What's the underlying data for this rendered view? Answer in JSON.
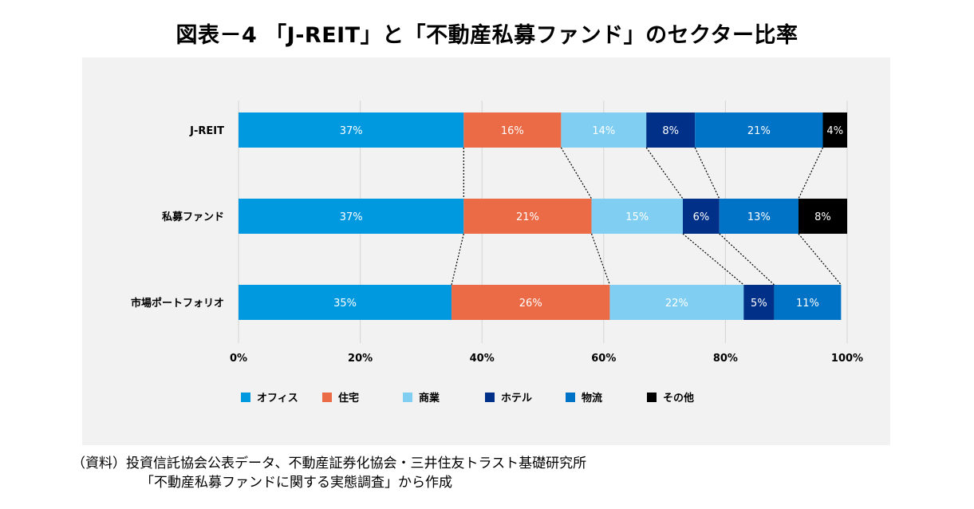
{
  "title": "図表－4 「J-REIT」と「不動産私募ファンド」のセクター比率",
  "source": {
    "line1": "（資料）投資信託協会公表データ、不動産証券化協会・三井住友トラスト基礎研究所",
    "line2": "「不動産私募ファンドに関する実態調査」から作成"
  },
  "chart_data": {
    "type": "bar",
    "orientation": "horizontal",
    "stacked": true,
    "percent_stacked": true,
    "categories": [
      "J-REIT",
      "私募ファンド",
      "市場ポートフォリオ"
    ],
    "series": [
      {
        "name": "オフィス",
        "color": "#0099e0",
        "values": [
          37,
          37,
          35
        ],
        "labels": [
          "37%",
          "37%",
          "35%"
        ]
      },
      {
        "name": "住宅",
        "color": "#ec6b47",
        "values": [
          16,
          21,
          26
        ],
        "labels": [
          "16%",
          "21%",
          "26%"
        ]
      },
      {
        "name": "商業",
        "color": "#80cff2",
        "values": [
          14,
          15,
          22
        ],
        "labels": [
          "14%",
          "15%",
          "22%"
        ]
      },
      {
        "name": "ホテル",
        "color": "#003087",
        "values": [
          8,
          6,
          5
        ],
        "labels": [
          "8%",
          "6%",
          "5%"
        ]
      },
      {
        "name": "物流",
        "color": "#0073c7",
        "values": [
          21,
          13,
          11
        ],
        "labels": [
          "21%",
          "13%",
          "11%"
        ]
      },
      {
        "name": "その他",
        "color": "#000000",
        "values": [
          4,
          8,
          0
        ],
        "labels": [
          "4%",
          "8%",
          ""
        ]
      }
    ],
    "xlim": [
      0,
      100
    ],
    "xticks": [
      "0%",
      "20%",
      "40%",
      "60%",
      "80%",
      "100%"
    ],
    "grid": true,
    "series_connector_lines": "dotted",
    "legend_position": "bottom"
  }
}
